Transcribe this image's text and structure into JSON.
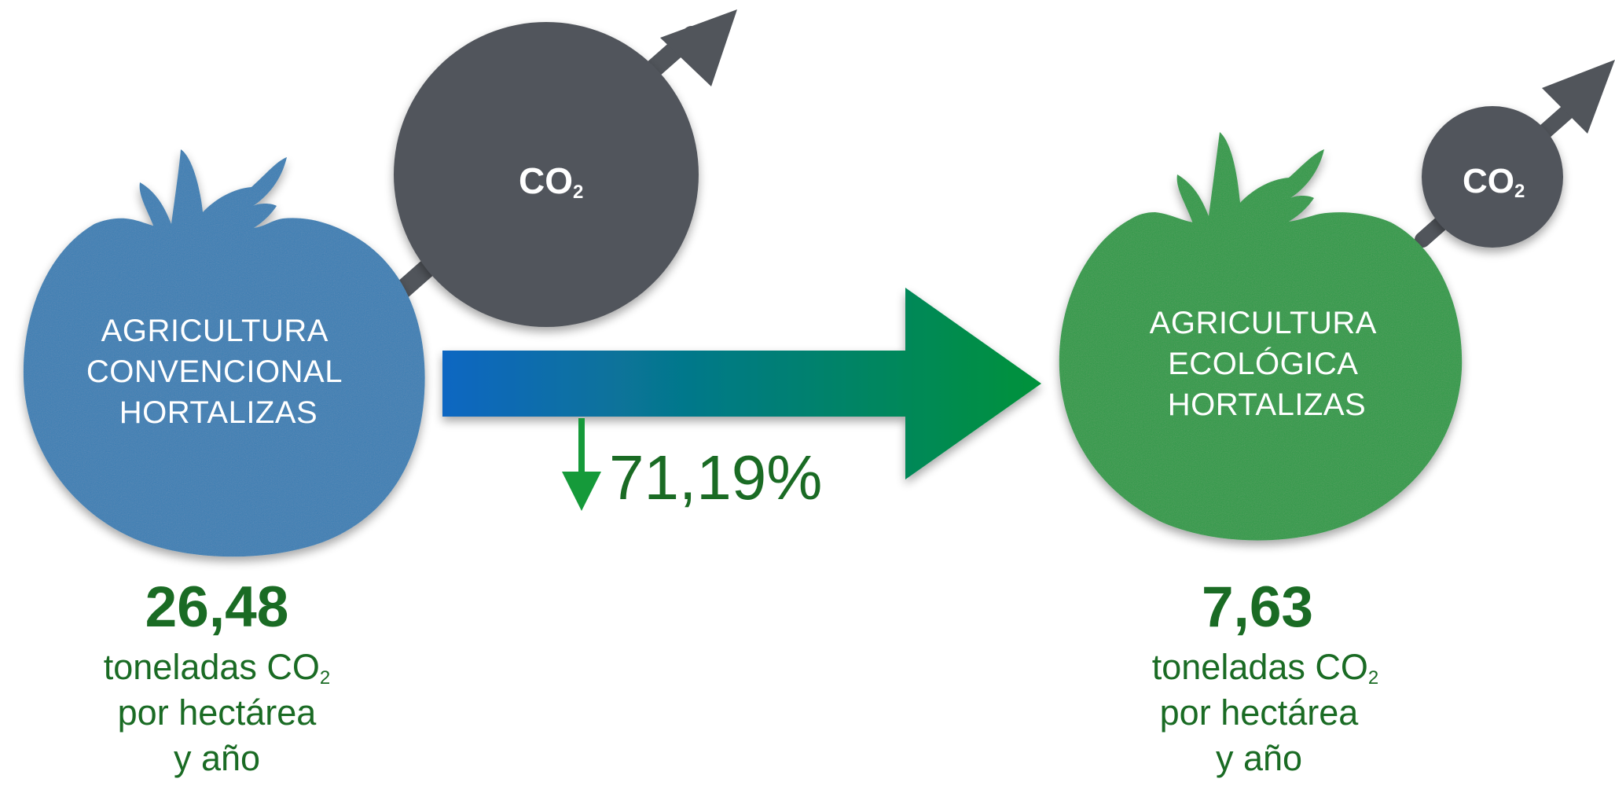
{
  "left": {
    "label_lines": [
      "AGRICULTURA",
      "CONVENCIONAL",
      "HORTALIZAS"
    ],
    "value": "26,48",
    "unit_main": "toneladas CO",
    "unit_sub": "2",
    "unit_line2": "por hectárea",
    "unit_line3": "y año",
    "co2_main": "CO",
    "co2_sub": "2",
    "color": "#3a7fb4"
  },
  "right": {
    "label_lines": [
      "AGRICULTURA",
      "ECOLÓGICA",
      "HORTALIZAS"
    ],
    "value": "7,63",
    "unit_main": "toneladas CO",
    "unit_sub": "2",
    "unit_line2": "por hectárea",
    "unit_line3": "y año",
    "co2_main": "CO",
    "co2_sub": "2",
    "color": "#2d9a47"
  },
  "reduction": {
    "percent_text": "71,19%",
    "direction": "down"
  },
  "colors": {
    "co2_bubble": "#51555b",
    "arrow_start": "#0a66c2",
    "arrow_end": "#00923a",
    "text_green": "#1a6b24",
    "down_arrow": "#159a3a"
  }
}
